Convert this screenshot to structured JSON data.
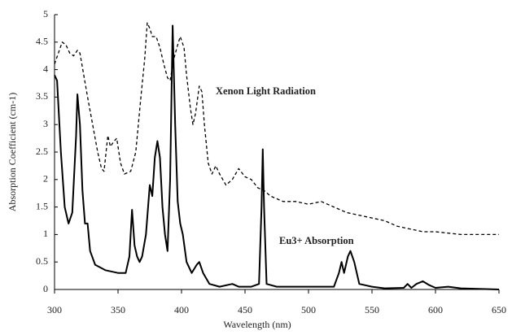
{
  "chart_data": {
    "type": "line",
    "xlabel": "Wavelength (nm)",
    "ylabel": "Absorption Coefficient (cm-1)",
    "xlim": [
      300,
      650
    ],
    "xticks": [
      300,
      350,
      400,
      450,
      500,
      550,
      600,
      650
    ],
    "ylim": [
      0,
      5
    ],
    "yticks": [
      0,
      0.5,
      1,
      1.5,
      2,
      2.5,
      3,
      3.5,
      4,
      4.5,
      5
    ],
    "grid": false,
    "series": [
      {
        "name": "Eu3+ Absorption",
        "color": "#000000",
        "dash": false,
        "x": [
          300,
          302,
          305,
          308,
          311,
          314,
          317,
          318,
          320,
          322,
          324,
          326,
          328,
          332,
          340,
          350,
          356,
          359,
          361,
          363,
          365,
          367,
          369,
          372,
          375,
          377,
          379,
          381,
          383,
          385,
          387,
          389,
          391,
          393,
          395,
          397,
          399,
          401,
          404,
          408,
          412,
          414,
          417,
          422,
          430,
          440,
          445,
          455,
          461,
          463,
          464,
          465,
          467,
          475,
          490,
          520,
          524,
          526,
          528,
          531,
          533,
          536,
          540,
          550,
          560,
          575,
          578,
          581,
          585,
          590,
          595,
          600,
          610,
          620,
          650
        ],
        "values": [
          3.9,
          3.8,
          2.5,
          1.5,
          1.2,
          1.4,
          2.8,
          3.55,
          3.0,
          1.8,
          1.2,
          1.2,
          0.7,
          0.45,
          0.35,
          0.3,
          0.3,
          0.6,
          1.45,
          0.8,
          0.6,
          0.5,
          0.6,
          1.0,
          1.9,
          1.7,
          2.4,
          2.7,
          2.4,
          1.5,
          1.0,
          0.7,
          2.0,
          4.8,
          3.0,
          1.6,
          1.2,
          1.0,
          0.5,
          0.3,
          0.45,
          0.5,
          0.3,
          0.1,
          0.05,
          0.1,
          0.05,
          0.05,
          0.1,
          1.5,
          2.55,
          1.5,
          0.1,
          0.05,
          0.05,
          0.05,
          0.3,
          0.5,
          0.3,
          0.6,
          0.7,
          0.5,
          0.1,
          0.05,
          0.02,
          0.03,
          0.1,
          0.03,
          0.1,
          0.15,
          0.08,
          0.03,
          0.05,
          0.02,
          0
        ]
      },
      {
        "name": "Xenon Light Radiation",
        "color": "#000000",
        "dash": true,
        "x": [
          300,
          303,
          306,
          309,
          312,
          315,
          318,
          320,
          323,
          326,
          330,
          334,
          337,
          339,
          342,
          344,
          347,
          349,
          352,
          355,
          360,
          364,
          368,
          371,
          373,
          375,
          377,
          380,
          383,
          386,
          389,
          391,
          394,
          397,
          399,
          402,
          404,
          407,
          409,
          411,
          414,
          416,
          418,
          421,
          424,
          427,
          430,
          435,
          440,
          445,
          450,
          455,
          460,
          465,
          470,
          480,
          490,
          500,
          510,
          520,
          530,
          540,
          550,
          560,
          570,
          580,
          590,
          600,
          620,
          640,
          650
        ],
        "values": [
          4.1,
          4.3,
          4.5,
          4.45,
          4.3,
          4.25,
          4.35,
          4.3,
          3.9,
          3.5,
          3.0,
          2.5,
          2.2,
          2.15,
          2.8,
          2.6,
          2.7,
          2.75,
          2.3,
          2.1,
          2.15,
          2.5,
          3.5,
          4.2,
          4.85,
          4.75,
          4.6,
          4.6,
          4.4,
          4.1,
          3.85,
          3.8,
          4.2,
          4.45,
          4.6,
          4.4,
          3.9,
          3.3,
          3.0,
          3.2,
          3.7,
          3.6,
          3.0,
          2.3,
          2.1,
          2.25,
          2.1,
          1.9,
          2.0,
          2.2,
          2.05,
          2.0,
          1.85,
          1.8,
          1.7,
          1.6,
          1.6,
          1.55,
          1.6,
          1.5,
          1.4,
          1.35,
          1.3,
          1.25,
          1.15,
          1.1,
          1.05,
          1.05,
          1.0,
          1.0,
          1.0
        ]
      }
    ]
  }
}
